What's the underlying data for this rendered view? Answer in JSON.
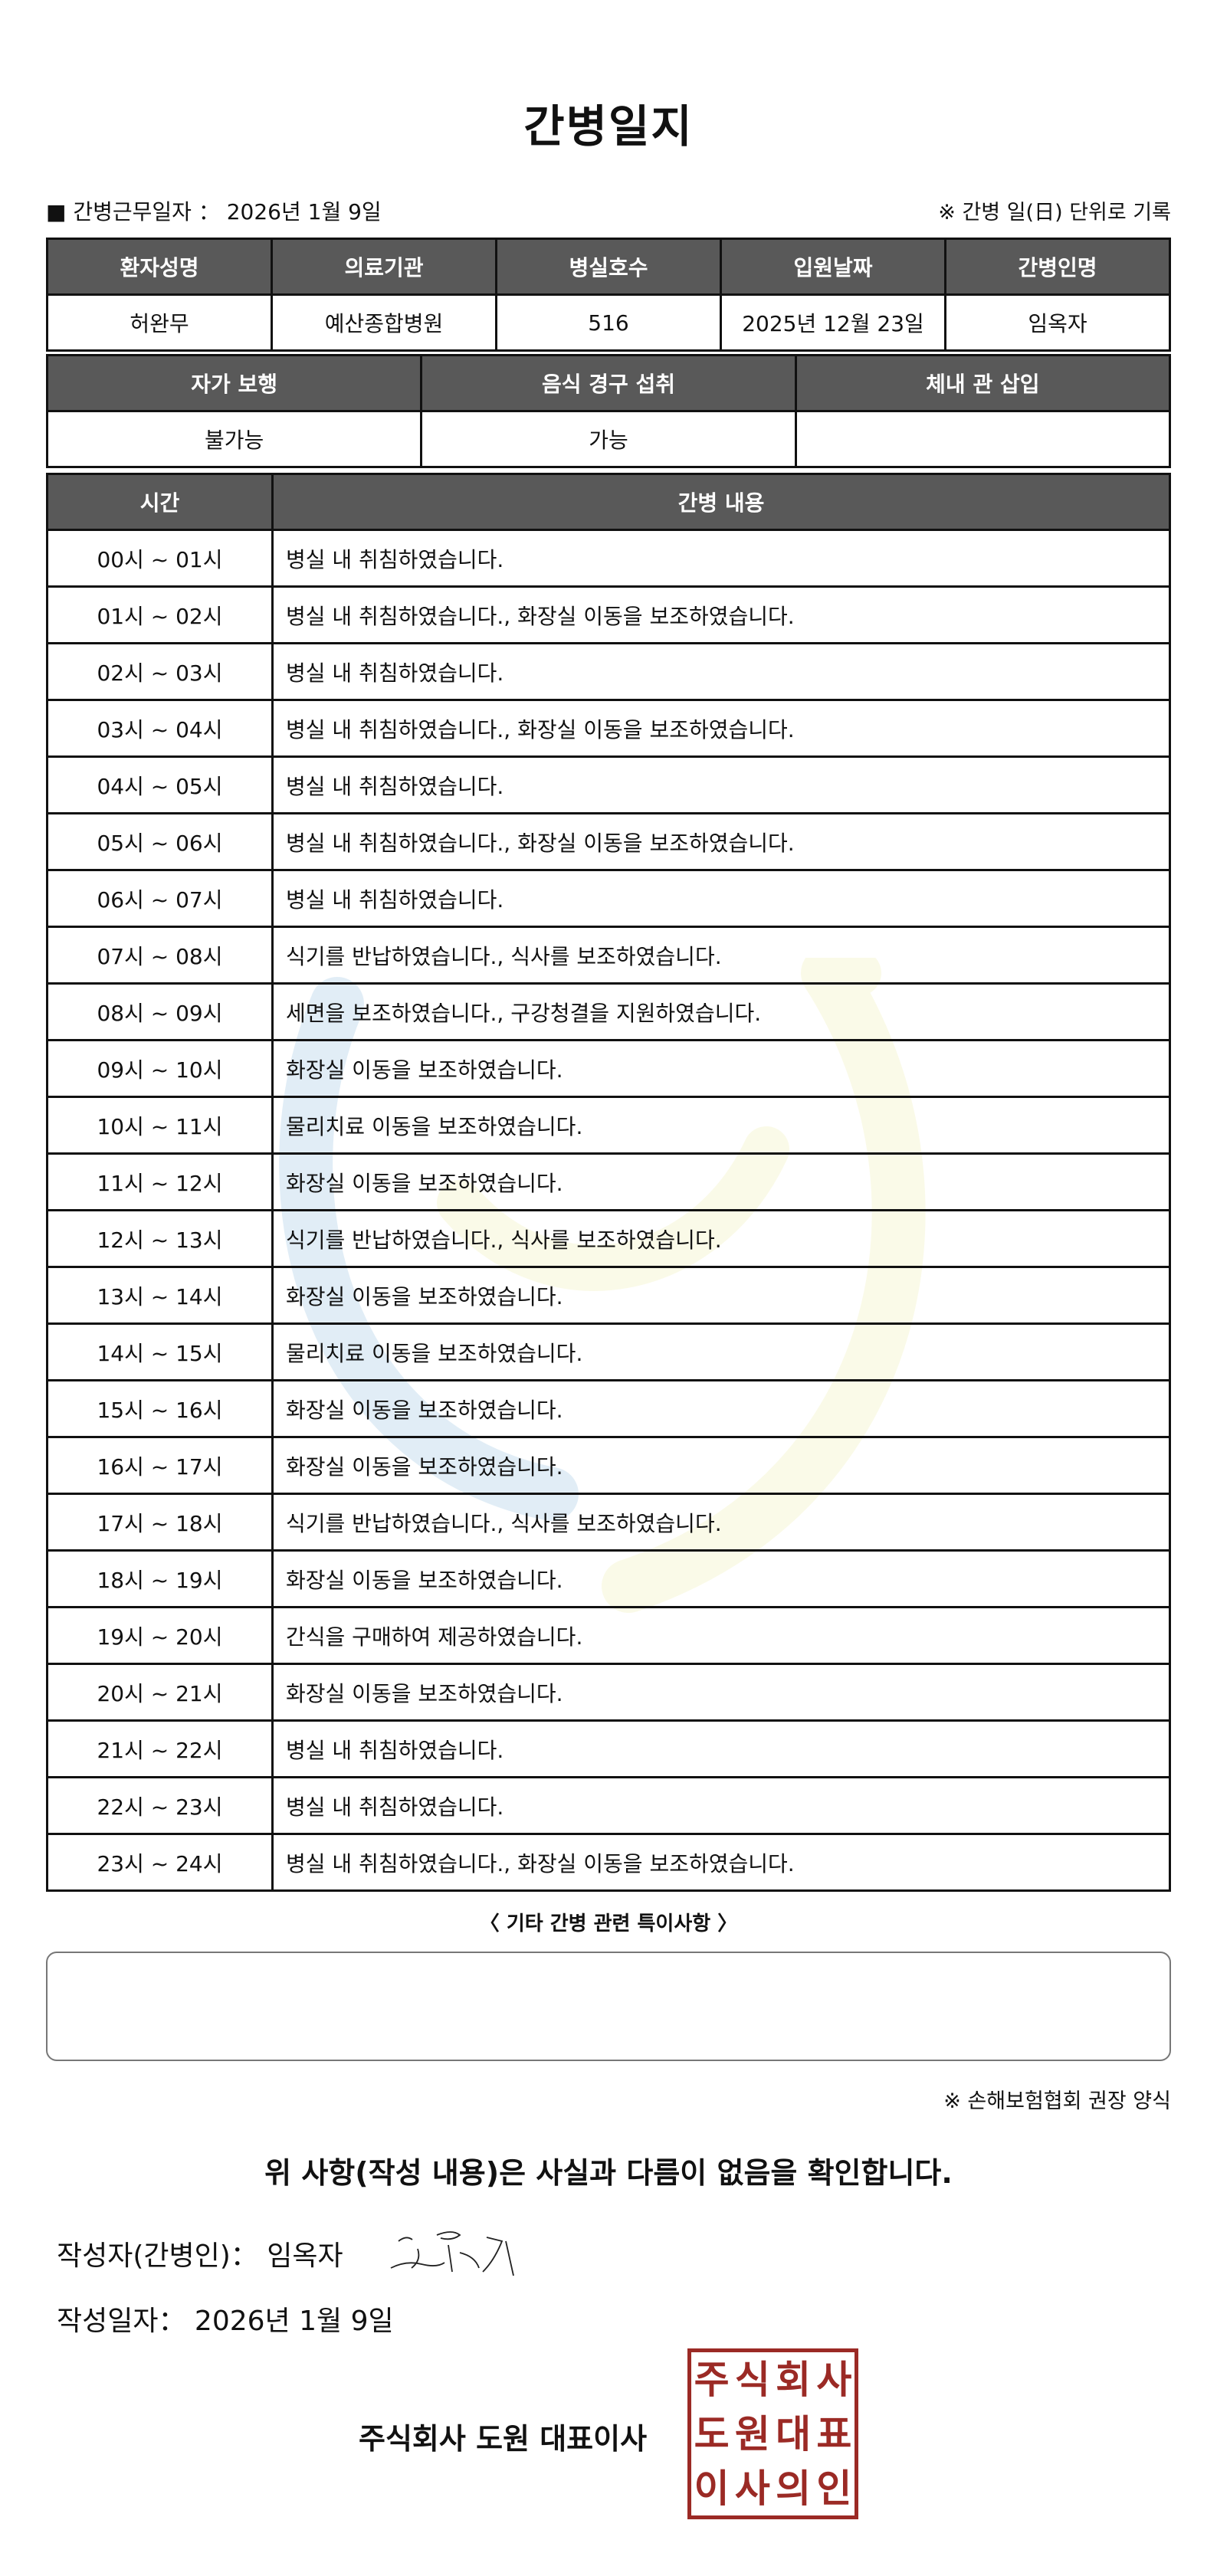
{
  "title": "간병일지",
  "info": {
    "work_date": "■ 간병근무일자 ： 2026년 1월 9일",
    "note": "※ 간병 일(日) 단위로 기록"
  },
  "table1": {
    "headers": [
      "환자성명",
      "의료기관",
      "병실호수",
      "입원날짜",
      "간병인명"
    ],
    "values": [
      "허완무",
      "예산종합병원",
      "516",
      "2025년 12월 23일",
      "임옥자"
    ]
  },
  "table2": {
    "headers": [
      "자가 보행",
      "음식 경구 섭취",
      "체내 관 삽입"
    ],
    "values": [
      "불가능",
      "가능",
      ""
    ]
  },
  "table3": {
    "headers": [
      "시간",
      "간병 내용"
    ],
    "rows": [
      [
        "00시 ~ 01시",
        "병실 내 취침하였습니다."
      ],
      [
        "01시 ~ 02시",
        "병실 내 취침하였습니다., 화장실 이동을 보조하였습니다."
      ],
      [
        "02시 ~ 03시",
        "병실 내 취침하였습니다."
      ],
      [
        "03시 ~ 04시",
        "병실 내 취침하였습니다., 화장실 이동을 보조하였습니다."
      ],
      [
        "04시 ~ 05시",
        "병실 내 취침하였습니다."
      ],
      [
        "05시 ~ 06시",
        "병실 내 취침하였습니다., 화장실 이동을 보조하였습니다."
      ],
      [
        "06시 ~ 07시",
        "병실 내 취침하였습니다."
      ],
      [
        "07시 ~ 08시",
        "식기를 반납하였습니다., 식사를 보조하였습니다."
      ],
      [
        "08시 ~ 09시",
        "세면을 보조하였습니다., 구강청결을 지원하였습니다."
      ],
      [
        "09시 ~ 10시",
        "화장실 이동을 보조하였습니다."
      ],
      [
        "10시 ~ 11시",
        "물리치료 이동을 보조하였습니다."
      ],
      [
        "11시 ~ 12시",
        "화장실 이동을 보조하였습니다."
      ],
      [
        "12시 ~ 13시",
        "식기를 반납하였습니다., 식사를 보조하였습니다."
      ],
      [
        "13시 ~ 14시",
        "화장실 이동을 보조하였습니다."
      ],
      [
        "14시 ~ 15시",
        "물리치료 이동을 보조하였습니다."
      ],
      [
        "15시 ~ 16시",
        "화장실 이동을 보조하였습니다."
      ],
      [
        "16시 ~ 17시",
        "화장실 이동을 보조하였습니다."
      ],
      [
        "17시 ~ 18시",
        "식기를 반납하였습니다., 식사를 보조하였습니다."
      ],
      [
        "18시 ~ 19시",
        "화장실 이동을 보조하였습니다."
      ],
      [
        "19시 ~ 20시",
        "간식을 구매하여 제공하였습니다."
      ],
      [
        "20시 ~ 21시",
        "화장실 이동을 보조하였습니다."
      ],
      [
        "21시 ~ 22시",
        "병실 내 취침하였습니다."
      ],
      [
        "22시 ~ 23시",
        "병실 내 취침하였습니다."
      ],
      [
        "23시 ~ 24시",
        "병실 내 취침하였습니다., 화장실 이동을 보조하였습니다."
      ]
    ]
  },
  "notes_label": "〈 기타 간병 관련 특이사항 〉",
  "notes_value": "",
  "form_note": "※ 손해보험협회 권장 양식",
  "confirm": "위 사항(작성 내용)은 사실과 다름이 없음을 확인합니다.",
  "writer": "작성자(간병인)：  임옥자",
  "written_date": "작성일자：  2026년 1월 9일",
  "company": "주식회사 도원   대표이사",
  "seal_text": [
    "주",
    "식",
    "회",
    "사",
    "도",
    "원",
    "대",
    "표",
    "이",
    "사",
    "의",
    "인"
  ],
  "seal_color": "#9b2a25",
  "header_color": "#595959"
}
